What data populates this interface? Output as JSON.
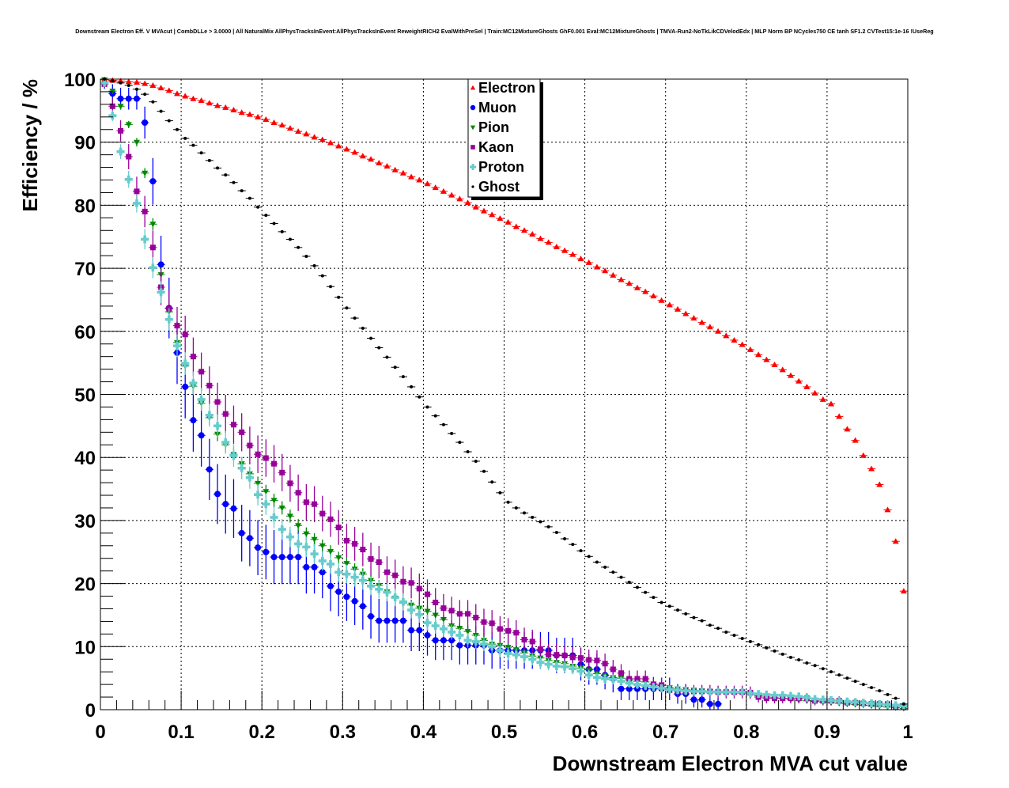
{
  "chart_data": {
    "type": "scatter",
    "title": "Downstream Electron Eff. V MVAcut | CombDLLe > 3.0000 | All NaturalMix AllPhysTracksInEvent:AllPhysTracksInEvent ReweightRICH2 EvalWithPreSel | Train:MC12MixtureGhosts GhF0.001 Eval:MC12MixtureGhosts | TMVA-Run2-NoTkLikCDVelodEdx | MLP Norm BP NCycles750 CE tanh SF1.2 CVTest15:1e-16 !UseReg",
    "xlabel": "Downstream Electron MVA cut value",
    "ylabel": "Efficiency / %",
    "xlim": [
      0,
      1
    ],
    "ylim": [
      0,
      100
    ],
    "x_bins": 100,
    "x_ticks": [
      "0",
      "0.1",
      "0.2",
      "0.3",
      "0.4",
      "0.5",
      "0.6",
      "0.7",
      "0.8",
      "0.9",
      "1"
    ],
    "y_ticks": [
      "0",
      "10",
      "20",
      "30",
      "40",
      "50",
      "60",
      "70",
      "80",
      "90",
      "100"
    ],
    "grid": true,
    "legend_position": "top-center",
    "series": [
      {
        "name": "Electron",
        "color": "#ff0000",
        "marker": "triangle-up",
        "effective_n": 50000,
        "values": [
          99.9,
          99.8,
          99.7,
          99.6,
          99.5,
          99.3,
          99.0,
          98.6,
          98.2,
          97.7,
          97.3,
          96.9,
          96.6,
          96.2,
          95.8,
          95.5,
          95.1,
          94.7,
          94.4,
          94.0,
          93.6,
          93.1,
          92.7,
          92.2,
          91.7,
          91.3,
          90.8,
          90.4,
          89.9,
          89.4,
          88.9,
          88.4,
          87.8,
          87.3,
          86.7,
          86.2,
          85.6,
          85.1,
          84.5,
          84.0,
          83.4,
          82.8,
          82.2,
          81.6,
          81.0,
          80.4,
          79.7,
          79.1,
          78.5,
          77.9,
          77.3,
          76.6,
          76.0,
          75.4,
          74.7,
          74.1,
          73.4,
          72.8,
          72.2,
          71.5,
          70.9,
          70.2,
          69.6,
          68.9,
          68.2,
          67.6,
          66.9,
          66.3,
          65.6,
          64.9,
          64.2,
          63.5,
          62.8,
          62.1,
          61.4,
          60.7,
          60.0,
          59.3,
          58.6,
          57.9,
          57.1,
          56.3,
          55.5,
          54.7,
          53.9,
          53.0,
          52.1,
          51.2,
          50.2,
          49.2,
          48.5,
          46.5,
          44.5,
          42.7,
          40.3,
          38.2,
          35.7,
          31.7,
          26.7,
          18.8
        ]
      },
      {
        "name": "Muon",
        "color": "#0000ff",
        "marker": "circle",
        "effective_n": 100,
        "values": [
          99.3,
          97.7,
          96.9,
          96.9,
          96.9,
          93.1,
          83.8,
          70.6,
          63.7,
          56.6,
          51.2,
          45.9,
          43.5,
          38.1,
          34.2,
          32.6,
          31.9,
          28.0,
          27.2,
          25.7,
          25.0,
          24.2,
          24.2,
          24.2,
          24.2,
          22.6,
          22.6,
          21.8,
          19.6,
          18.7,
          17.9,
          17.2,
          16.4,
          14.8,
          14.1,
          14.1,
          14.1,
          14.1,
          12.6,
          12.6,
          11.8,
          11.0,
          11.0,
          11.0,
          10.2,
          10.2,
          10.2,
          10.2,
          9.4,
          9.4,
          9.4,
          9.4,
          9.4,
          9.4,
          9.4,
          9.4,
          8.6,
          8.6,
          8.6,
          7.2,
          6.4,
          6.4,
          5.5,
          4.9,
          3.3,
          3.3,
          3.3,
          3.3,
          3.3,
          3.3,
          3.3,
          2.5,
          2.5,
          1.6,
          1.6,
          0.9,
          0.9,
          null,
          null,
          null,
          null,
          null,
          null,
          null,
          null,
          null,
          null,
          null,
          null,
          null,
          null,
          null,
          null,
          null,
          null,
          null,
          null,
          null,
          null,
          null
        ]
      },
      {
        "name": "Pion",
        "color": "#008800",
        "marker": "triangle-down",
        "effective_n": 2000,
        "values": [
          99.9,
          98.1,
          95.7,
          92.8,
          90.0,
          85.1,
          77.0,
          69.0,
          63.1,
          58.2,
          54.5,
          51.3,
          48.6,
          46.3,
          43.7,
          42.0,
          40.5,
          39.0,
          37.4,
          35.9,
          34.6,
          33.2,
          32.0,
          30.7,
          29.2,
          27.9,
          27.0,
          26.0,
          25.1,
          24.1,
          23.2,
          22.3,
          21.5,
          20.5,
          19.7,
          18.7,
          17.7,
          16.9,
          16.6,
          16.1,
          15.6,
          15.0,
          14.3,
          13.3,
          12.9,
          12.4,
          11.8,
          11.0,
          10.4,
          10.2,
          9.9,
          9.5,
          9.0,
          8.5,
          8.2,
          7.8,
          7.5,
          7.3,
          6.9,
          6.6,
          6.3,
          5.7,
          5.4,
          5.1,
          5.0,
          4.7,
          4.5,
          4.4,
          4.1,
          3.8,
          3.5,
          3.3,
          3.2,
          3.1,
          3.0,
          2.9,
          2.8,
          2.7,
          2.6,
          2.6,
          2.4,
          2.2,
          2.0,
          1.9,
          1.8,
          1.6,
          1.5,
          1.4,
          1.3,
          1.2,
          1.1,
          1.0,
          0.9,
          0.8,
          0.7,
          0.6,
          0.5,
          0.4,
          0.3,
          0.2
        ]
      },
      {
        "name": "Kaon",
        "color": "#990099",
        "marker": "square",
        "effective_n": 270,
        "values": [
          99.2,
          95.7,
          91.8,
          87.7,
          82.2,
          79.0,
          73.3,
          67.0,
          63.6,
          60.9,
          59.5,
          56.0,
          53.6,
          51.4,
          48.8,
          46.9,
          45.2,
          44.0,
          41.9,
          40.5,
          39.9,
          39.0,
          37.6,
          35.9,
          34.4,
          32.9,
          32.6,
          31.1,
          30.2,
          28.9,
          26.8,
          26.3,
          25.4,
          23.9,
          23.4,
          21.8,
          21.3,
          20.3,
          20.1,
          19.2,
          18.3,
          17.0,
          16.1,
          15.7,
          15.2,
          15.2,
          14.6,
          13.9,
          13.7,
          12.8,
          12.5,
          12.2,
          11.1,
          10.8,
          9.6,
          8.7,
          8.7,
          8.6,
          8.3,
          8.2,
          7.9,
          7.8,
          7.3,
          6.4,
          5.8,
          4.9,
          4.9,
          4.9,
          4.0,
          3.9,
          3.1,
          2.9,
          2.9,
          2.9,
          2.9,
          2.9,
          2.8,
          2.8,
          2.8,
          2.8,
          2.7,
          2.0,
          1.8,
          1.8,
          1.8,
          1.8,
          1.8,
          1.8,
          1.4,
          1.4,
          1.4,
          1.4,
          1.1,
          1.1,
          1.0,
          0.9,
          0.9,
          0.9,
          0.5,
          0.5
        ]
      },
      {
        "name": "Proton",
        "color": "#66cccc",
        "marker": "cross",
        "effective_n": 750,
        "values": [
          99.4,
          94.2,
          88.5,
          84.1,
          80.3,
          74.6,
          70.1,
          66.2,
          61.9,
          57.7,
          54.9,
          51.8,
          49.2,
          46.7,
          45.0,
          42.4,
          40.3,
          38.3,
          36.8,
          34.1,
          32.6,
          30.5,
          28.6,
          27.4,
          26.3,
          25.8,
          24.7,
          23.6,
          23.1,
          21.8,
          21.5,
          21.0,
          20.5,
          19.6,
          19.1,
          18.6,
          17.8,
          17.1,
          15.8,
          15.1,
          13.8,
          13.3,
          12.8,
          12.3,
          11.8,
          11.0,
          10.8,
          10.4,
          10.0,
          9.4,
          8.9,
          8.7,
          8.4,
          8.0,
          7.5,
          7.2,
          6.9,
          6.8,
          6.5,
          6.1,
          5.5,
          5.1,
          4.9,
          4.8,
          4.5,
          4.2,
          4.0,
          3.8,
          3.6,
          3.4,
          3.2,
          3.1,
          3.0,
          2.9,
          2.9,
          2.8,
          2.8,
          2.8,
          2.8,
          2.8,
          2.6,
          2.5,
          2.4,
          2.3,
          2.3,
          2.2,
          2.1,
          1.9,
          1.7,
          1.6,
          1.5,
          1.4,
          1.3,
          1.2,
          1.1,
          1.0,
          0.9,
          0.8,
          0.7,
          0.6
        ]
      },
      {
        "name": "Ghost",
        "color": "#000000",
        "marker": "dot",
        "effective_n": 50000,
        "values": [
          100.0,
          99.7,
          99.4,
          99.0,
          98.4,
          97.6,
          96.4,
          94.9,
          93.4,
          92.0,
          90.6,
          89.5,
          88.3,
          87.1,
          85.9,
          84.8,
          83.6,
          82.3,
          81.1,
          79.7,
          78.4,
          77.1,
          75.8,
          74.6,
          73.3,
          71.9,
          70.4,
          68.8,
          67.1,
          65.4,
          63.7,
          62.1,
          60.5,
          58.9,
          57.4,
          55.9,
          54.3,
          52.8,
          51.2,
          49.6,
          48.0,
          46.6,
          45.2,
          43.8,
          42.4,
          40.9,
          39.4,
          37.8,
          36.1,
          34.4,
          32.9,
          32.0,
          31.2,
          30.5,
          29.8,
          29.0,
          28.1,
          27.1,
          26.2,
          25.2,
          24.3,
          23.4,
          22.6,
          21.8,
          21.0,
          20.2,
          19.4,
          18.6,
          17.8,
          17.0,
          16.4,
          15.8,
          15.2,
          14.6,
          14.1,
          13.4,
          12.9,
          12.3,
          11.8,
          11.3,
          10.8,
          10.3,
          9.8,
          9.3,
          8.8,
          8.3,
          7.9,
          7.4,
          7.0,
          6.5,
          6.0,
          5.5,
          5.0,
          4.5,
          4.0,
          3.5,
          3.0,
          2.4,
          1.8,
          0.9
        ]
      }
    ]
  }
}
